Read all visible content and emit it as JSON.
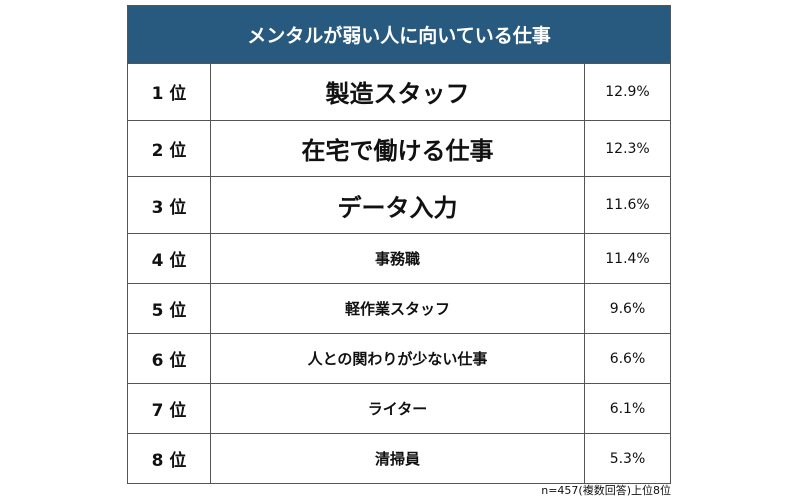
{
  "header": {
    "title": "メンタルが弱い人に向いている仕事"
  },
  "table": {
    "rows": [
      [
        "1 位",
        "製造スタッフ",
        "12.9%"
      ],
      [
        "2 位",
        "在宅で働ける仕事",
        "12.3%"
      ],
      [
        "3 位",
        "データ入力",
        "11.6%"
      ],
      [
        "4 位",
        "事務職",
        "11.4%"
      ],
      [
        "5 位",
        "軽作業スタッフ",
        "9.6%"
      ],
      [
        "6 位",
        "人との関わりが少ない仕事",
        "6.6%"
      ],
      [
        "7 位",
        "ライター",
        "6.1%"
      ],
      [
        "8 位",
        "清掃員",
        "5.3%"
      ]
    ]
  },
  "footnote": "n=457(複数回答)上位8位"
}
